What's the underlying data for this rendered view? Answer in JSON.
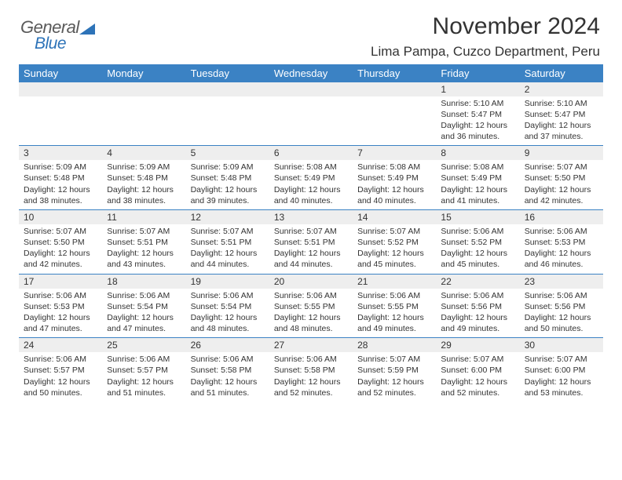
{
  "logo": {
    "textTop": "General",
    "textBottom": "Blue"
  },
  "header": {
    "month": "November 2024",
    "location": "Lima Pampa, Cuzco Department, Peru"
  },
  "style": {
    "header_bg": "#3b82c4",
    "header_fg": "#ffffff",
    "daynum_bg": "#eeeeee",
    "rule_color": "#3b82c4",
    "text_color": "#333333",
    "title_fontsize": 30,
    "location_fontsize": 17,
    "dayhead_fontsize": 13,
    "daynum_fontsize": 12,
    "body_fontsize": 10.5
  },
  "weekdays": [
    "Sunday",
    "Monday",
    "Tuesday",
    "Wednesday",
    "Thursday",
    "Friday",
    "Saturday"
  ],
  "weeks": [
    [
      {
        "n": "",
        "lines": []
      },
      {
        "n": "",
        "lines": []
      },
      {
        "n": "",
        "lines": []
      },
      {
        "n": "",
        "lines": []
      },
      {
        "n": "",
        "lines": []
      },
      {
        "n": "1",
        "lines": [
          "Sunrise: 5:10 AM",
          "Sunset: 5:47 PM",
          "Daylight: 12 hours and 36 minutes."
        ]
      },
      {
        "n": "2",
        "lines": [
          "Sunrise: 5:10 AM",
          "Sunset: 5:47 PM",
          "Daylight: 12 hours and 37 minutes."
        ]
      }
    ],
    [
      {
        "n": "3",
        "lines": [
          "Sunrise: 5:09 AM",
          "Sunset: 5:48 PM",
          "Daylight: 12 hours and 38 minutes."
        ]
      },
      {
        "n": "4",
        "lines": [
          "Sunrise: 5:09 AM",
          "Sunset: 5:48 PM",
          "Daylight: 12 hours and 38 minutes."
        ]
      },
      {
        "n": "5",
        "lines": [
          "Sunrise: 5:09 AM",
          "Sunset: 5:48 PM",
          "Daylight: 12 hours and 39 minutes."
        ]
      },
      {
        "n": "6",
        "lines": [
          "Sunrise: 5:08 AM",
          "Sunset: 5:49 PM",
          "Daylight: 12 hours and 40 minutes."
        ]
      },
      {
        "n": "7",
        "lines": [
          "Sunrise: 5:08 AM",
          "Sunset: 5:49 PM",
          "Daylight: 12 hours and 40 minutes."
        ]
      },
      {
        "n": "8",
        "lines": [
          "Sunrise: 5:08 AM",
          "Sunset: 5:49 PM",
          "Daylight: 12 hours and 41 minutes."
        ]
      },
      {
        "n": "9",
        "lines": [
          "Sunrise: 5:07 AM",
          "Sunset: 5:50 PM",
          "Daylight: 12 hours and 42 minutes."
        ]
      }
    ],
    [
      {
        "n": "10",
        "lines": [
          "Sunrise: 5:07 AM",
          "Sunset: 5:50 PM",
          "Daylight: 12 hours and 42 minutes."
        ]
      },
      {
        "n": "11",
        "lines": [
          "Sunrise: 5:07 AM",
          "Sunset: 5:51 PM",
          "Daylight: 12 hours and 43 minutes."
        ]
      },
      {
        "n": "12",
        "lines": [
          "Sunrise: 5:07 AM",
          "Sunset: 5:51 PM",
          "Daylight: 12 hours and 44 minutes."
        ]
      },
      {
        "n": "13",
        "lines": [
          "Sunrise: 5:07 AM",
          "Sunset: 5:51 PM",
          "Daylight: 12 hours and 44 minutes."
        ]
      },
      {
        "n": "14",
        "lines": [
          "Sunrise: 5:07 AM",
          "Sunset: 5:52 PM",
          "Daylight: 12 hours and 45 minutes."
        ]
      },
      {
        "n": "15",
        "lines": [
          "Sunrise: 5:06 AM",
          "Sunset: 5:52 PM",
          "Daylight: 12 hours and 45 minutes."
        ]
      },
      {
        "n": "16",
        "lines": [
          "Sunrise: 5:06 AM",
          "Sunset: 5:53 PM",
          "Daylight: 12 hours and 46 minutes."
        ]
      }
    ],
    [
      {
        "n": "17",
        "lines": [
          "Sunrise: 5:06 AM",
          "Sunset: 5:53 PM",
          "Daylight: 12 hours and 47 minutes."
        ]
      },
      {
        "n": "18",
        "lines": [
          "Sunrise: 5:06 AM",
          "Sunset: 5:54 PM",
          "Daylight: 12 hours and 47 minutes."
        ]
      },
      {
        "n": "19",
        "lines": [
          "Sunrise: 5:06 AM",
          "Sunset: 5:54 PM",
          "Daylight: 12 hours and 48 minutes."
        ]
      },
      {
        "n": "20",
        "lines": [
          "Sunrise: 5:06 AM",
          "Sunset: 5:55 PM",
          "Daylight: 12 hours and 48 minutes."
        ]
      },
      {
        "n": "21",
        "lines": [
          "Sunrise: 5:06 AM",
          "Sunset: 5:55 PM",
          "Daylight: 12 hours and 49 minutes."
        ]
      },
      {
        "n": "22",
        "lines": [
          "Sunrise: 5:06 AM",
          "Sunset: 5:56 PM",
          "Daylight: 12 hours and 49 minutes."
        ]
      },
      {
        "n": "23",
        "lines": [
          "Sunrise: 5:06 AM",
          "Sunset: 5:56 PM",
          "Daylight: 12 hours and 50 minutes."
        ]
      }
    ],
    [
      {
        "n": "24",
        "lines": [
          "Sunrise: 5:06 AM",
          "Sunset: 5:57 PM",
          "Daylight: 12 hours and 50 minutes."
        ]
      },
      {
        "n": "25",
        "lines": [
          "Sunrise: 5:06 AM",
          "Sunset: 5:57 PM",
          "Daylight: 12 hours and 51 minutes."
        ]
      },
      {
        "n": "26",
        "lines": [
          "Sunrise: 5:06 AM",
          "Sunset: 5:58 PM",
          "Daylight: 12 hours and 51 minutes."
        ]
      },
      {
        "n": "27",
        "lines": [
          "Sunrise: 5:06 AM",
          "Sunset: 5:58 PM",
          "Daylight: 12 hours and 52 minutes."
        ]
      },
      {
        "n": "28",
        "lines": [
          "Sunrise: 5:07 AM",
          "Sunset: 5:59 PM",
          "Daylight: 12 hours and 52 minutes."
        ]
      },
      {
        "n": "29",
        "lines": [
          "Sunrise: 5:07 AM",
          "Sunset: 6:00 PM",
          "Daylight: 12 hours and 52 minutes."
        ]
      },
      {
        "n": "30",
        "lines": [
          "Sunrise: 5:07 AM",
          "Sunset: 6:00 PM",
          "Daylight: 12 hours and 53 minutes."
        ]
      }
    ]
  ]
}
